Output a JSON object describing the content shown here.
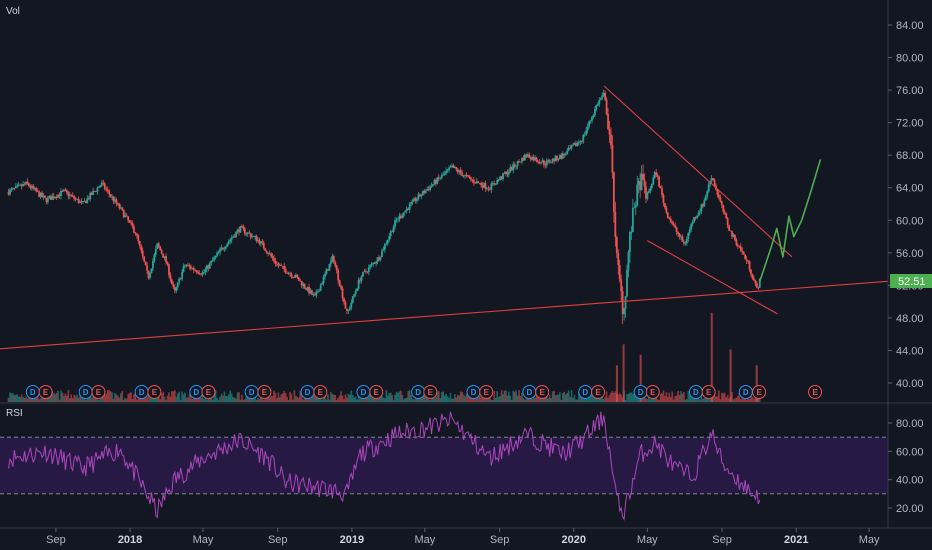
{
  "main_pane": {
    "volume_label": "Vol"
  },
  "rsi_pane": {
    "label": "RSI"
  },
  "last_price": "52.51",
  "colors": {
    "background": "#131722",
    "up": "#26a69a",
    "down": "#ef5350",
    "trendline": "#e04040",
    "projection": "#4caf50",
    "rsi_line": "#ab47bc",
    "rsi_band": "#2a1b4a",
    "last_price_bg": "#4caf50",
    "dividend_marker": "#2196f3",
    "earnings_marker": "#ef5350"
  },
  "chart_data": [
    {
      "type": "candlestick",
      "title": "",
      "y_ticks": [
        "40.00",
        "44.00",
        "48.00",
        "52.00",
        "56.00",
        "60.00",
        "64.00",
        "68.00",
        "72.00",
        "76.00",
        "80.00",
        "84.00"
      ],
      "ylim": [
        38,
        86
      ],
      "x_ticks": [
        {
          "label": "Sep",
          "date": "2017-09",
          "bold": false
        },
        {
          "label": "2018",
          "date": "2018-01",
          "bold": true
        },
        {
          "label": "May",
          "date": "2018-05",
          "bold": false
        },
        {
          "label": "Sep",
          "date": "2018-09",
          "bold": false
        },
        {
          "label": "2019",
          "date": "2019-01",
          "bold": true
        },
        {
          "label": "May",
          "date": "2019-05",
          "bold": false
        },
        {
          "label": "Sep",
          "date": "2019-09",
          "bold": false
        },
        {
          "label": "2020",
          "date": "2020-01",
          "bold": true
        },
        {
          "label": "May",
          "date": "2020-05",
          "bold": false
        },
        {
          "label": "Sep",
          "date": "2020-09",
          "bold": false
        },
        {
          "label": "2021",
          "date": "2021-01",
          "bold": true
        },
        {
          "label": "May",
          "date": "2021-05",
          "bold": false
        }
      ],
      "price_path": [
        [
          "2017-06-15",
          63.5
        ],
        [
          "2017-07-15",
          64.5
        ],
        [
          "2017-08-15",
          62.5
        ],
        [
          "2017-09-15",
          63.5
        ],
        [
          "2017-10-15",
          62.0
        ],
        [
          "2017-11-15",
          64.5
        ],
        [
          "2017-12-15",
          61.5
        ],
        [
          "2018-01-10",
          58.5
        ],
        [
          "2018-01-31",
          53.0
        ],
        [
          "2018-02-15",
          57.0
        ],
        [
          "2018-03-01",
          55.0
        ],
        [
          "2018-03-15",
          51.0
        ],
        [
          "2018-04-01",
          54.5
        ],
        [
          "2018-05-01",
          53.5
        ],
        [
          "2018-06-01",
          56.5
        ],
        [
          "2018-07-01",
          59.0
        ],
        [
          "2018-08-01",
          57.5
        ],
        [
          "2018-09-01",
          54.5
        ],
        [
          "2018-10-01",
          53.0
        ],
        [
          "2018-11-01",
          50.5
        ],
        [
          "2018-12-01",
          55.5
        ],
        [
          "2018-12-24",
          48.5
        ],
        [
          "2019-01-15",
          53.0
        ],
        [
          "2019-02-15",
          55.5
        ],
        [
          "2019-03-15",
          60.0
        ],
        [
          "2019-04-15",
          62.5
        ],
        [
          "2019-05-15",
          64.5
        ],
        [
          "2019-06-15",
          66.5
        ],
        [
          "2019-07-15",
          65.0
        ],
        [
          "2019-08-15",
          64.0
        ],
        [
          "2019-09-15",
          66.0
        ],
        [
          "2019-10-15",
          68.0
        ],
        [
          "2019-11-15",
          67.0
        ],
        [
          "2019-12-15",
          68.0
        ],
        [
          "2020-01-15",
          70.0
        ],
        [
          "2020-02-10",
          74.5
        ],
        [
          "2020-02-20",
          75.5
        ],
        [
          "2020-03-01",
          70.0
        ],
        [
          "2020-03-12",
          55.0
        ],
        [
          "2020-03-23",
          48.5
        ],
        [
          "2020-04-01",
          57.0
        ],
        [
          "2020-04-10",
          62.0
        ],
        [
          "2020-04-20",
          65.0
        ],
        [
          "2020-05-01",
          63.0
        ],
        [
          "2020-05-15",
          66.0
        ],
        [
          "2020-06-01",
          61.0
        ],
        [
          "2020-06-15",
          59.0
        ],
        [
          "2020-07-01",
          57.0
        ],
        [
          "2020-07-15",
          60.0
        ],
        [
          "2020-08-01",
          62.0
        ],
        [
          "2020-08-15",
          65.5
        ],
        [
          "2020-09-01",
          61.5
        ],
        [
          "2020-09-15",
          58.5
        ],
        [
          "2020-10-01",
          56.5
        ],
        [
          "2020-10-15",
          54.5
        ],
        [
          "2020-10-28",
          51.5
        ],
        [
          "2020-11-02",
          52.5
        ]
      ],
      "volume_spikes": [
        [
          "2020-03-12",
          0.35
        ],
        [
          "2020-03-23",
          0.55
        ],
        [
          "2020-04-20",
          0.45
        ],
        [
          "2020-08-15",
          0.85
        ],
        [
          "2020-09-15",
          0.5
        ],
        [
          "2020-10-28",
          0.35
        ]
      ],
      "volume_max": 1.0,
      "events": [
        {
          "label": "D",
          "date": "2017-07-25"
        },
        {
          "label": "E",
          "date": "2017-08-15"
        },
        {
          "label": "D",
          "date": "2017-10-20"
        },
        {
          "label": "E",
          "date": "2017-11-10"
        },
        {
          "label": "D",
          "date": "2018-01-20"
        },
        {
          "label": "E",
          "date": "2018-02-10"
        },
        {
          "label": "D",
          "date": "2018-04-20"
        },
        {
          "label": "E",
          "date": "2018-05-10"
        },
        {
          "label": "D",
          "date": "2018-07-20"
        },
        {
          "label": "E",
          "date": "2018-08-10"
        },
        {
          "label": "D",
          "date": "2018-10-20"
        },
        {
          "label": "E",
          "date": "2018-11-10"
        },
        {
          "label": "D",
          "date": "2019-01-20"
        },
        {
          "label": "E",
          "date": "2019-02-10"
        },
        {
          "label": "D",
          "date": "2019-04-20"
        },
        {
          "label": "E",
          "date": "2019-05-10"
        },
        {
          "label": "D",
          "date": "2019-07-20"
        },
        {
          "label": "E",
          "date": "2019-08-10"
        },
        {
          "label": "D",
          "date": "2019-10-20"
        },
        {
          "label": "E",
          "date": "2019-11-10"
        },
        {
          "label": "D",
          "date": "2020-01-20"
        },
        {
          "label": "E",
          "date": "2020-02-10"
        },
        {
          "label": "D",
          "date": "2020-04-20"
        },
        {
          "label": "E",
          "date": "2020-05-10"
        },
        {
          "label": "D",
          "date": "2020-07-20"
        },
        {
          "label": "E",
          "date": "2020-08-10"
        },
        {
          "label": "D",
          "date": "2020-10-10"
        },
        {
          "label": "E",
          "date": "2020-11-01"
        },
        {
          "label": "E",
          "date": "2021-02-01"
        }
      ],
      "trendlines": [
        {
          "from": [
            "2017-06-01",
            44.2
          ],
          "to": [
            "2021-06-01",
            52.5
          ]
        },
        {
          "from": [
            "2020-02-20",
            76.5
          ],
          "to": [
            "2020-12-25",
            55.5
          ]
        },
        {
          "from": [
            "2020-05-01",
            57.5
          ],
          "to": [
            "2020-12-01",
            48.5
          ]
        }
      ],
      "projection": [
        [
          "2020-11-02",
          52.5
        ],
        [
          "2020-11-20",
          56.5
        ],
        [
          "2020-11-30",
          59.0
        ],
        [
          "2020-12-10",
          55.5
        ],
        [
          "2020-12-20",
          60.5
        ],
        [
          "2020-12-28",
          58.0
        ],
        [
          "2021-01-10",
          60.0
        ],
        [
          "2021-01-25",
          63.5
        ],
        [
          "2021-02-10",
          67.5
        ]
      ]
    },
    {
      "type": "line",
      "title": "",
      "y_ticks": [
        "20.00",
        "40.00",
        "60.00",
        "80.00"
      ],
      "ylim": [
        12,
        88
      ],
      "band": [
        30,
        70
      ],
      "rsi_path": [
        [
          "2017-06-15",
          55
        ],
        [
          "2017-08-15",
          60
        ],
        [
          "2017-10-15",
          48
        ],
        [
          "2017-12-15",
          62
        ],
        [
          "2018-01-31",
          28
        ],
        [
          "2018-02-15",
          18
        ],
        [
          "2018-03-15",
          40
        ],
        [
          "2018-05-01",
          55
        ],
        [
          "2018-07-01",
          68
        ],
        [
          "2018-08-15",
          55
        ],
        [
          "2018-09-15",
          38
        ],
        [
          "2018-11-01",
          35
        ],
        [
          "2018-12-24",
          30
        ],
        [
          "2019-01-15",
          58
        ],
        [
          "2019-03-15",
          72
        ],
        [
          "2019-05-15",
          78
        ],
        [
          "2019-06-15",
          82
        ],
        [
          "2019-08-15",
          55
        ],
        [
          "2019-10-15",
          72
        ],
        [
          "2019-12-15",
          58
        ],
        [
          "2020-01-15",
          68
        ],
        [
          "2020-02-10",
          80
        ],
        [
          "2020-02-20",
          85
        ],
        [
          "2020-03-12",
          25
        ],
        [
          "2020-03-23",
          16
        ],
        [
          "2020-04-20",
          58
        ],
        [
          "2020-05-15",
          66
        ],
        [
          "2020-06-15",
          48
        ],
        [
          "2020-07-15",
          42
        ],
        [
          "2020-08-15",
          73
        ],
        [
          "2020-09-01",
          52
        ],
        [
          "2020-10-01",
          38
        ],
        [
          "2020-10-28",
          28
        ],
        [
          "2020-11-02",
          30
        ]
      ]
    }
  ]
}
